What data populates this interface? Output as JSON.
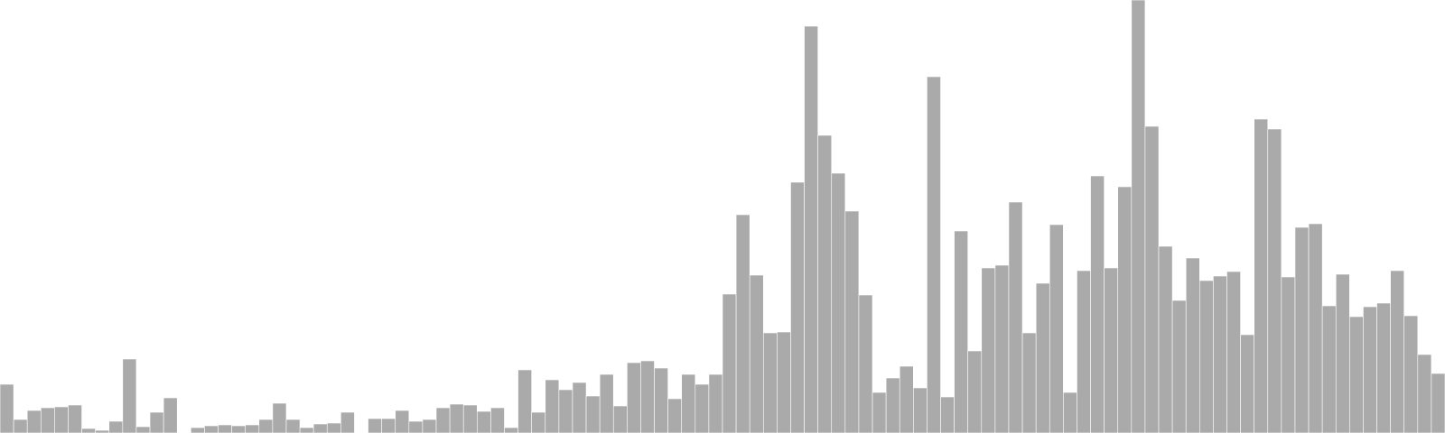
{
  "chart_data": {
    "type": "bar",
    "title": "",
    "xlabel": "",
    "ylabel": "",
    "axes_visible": false,
    "grid": false,
    "legend": "none",
    "bar_color": "#aaaaaa",
    "background": "#ffffff",
    "ylim": [
      0,
      480
    ],
    "values": [
      54,
      15,
      25,
      28,
      29,
      31,
      5,
      3,
      13,
      82,
      7,
      23,
      39,
      0,
      6,
      8,
      9,
      8,
      9,
      15,
      33,
      15,
      6,
      10,
      11,
      23,
      0,
      16,
      16,
      25,
      13,
      15,
      28,
      32,
      31,
      24,
      28,
      6,
      70,
      23,
      59,
      48,
      56,
      41,
      65,
      30,
      78,
      80,
      72,
      38,
      65,
      54,
      65,
      154,
      242,
      175,
      111,
      112,
      278,
      451,
      330,
      288,
      246,
      153,
      45,
      61,
      74,
      50,
      395,
      40,
      224,
      91,
      183,
      186,
      256,
      111,
      166,
      231,
      45,
      180,
      285,
      183,
      273,
      480,
      340,
      207,
      147,
      194,
      169,
      174,
      179,
      109,
      348,
      337,
      173,
      228,
      232,
      141,
      176,
      129,
      140,
      144,
      180,
      130,
      87,
      66
    ]
  }
}
